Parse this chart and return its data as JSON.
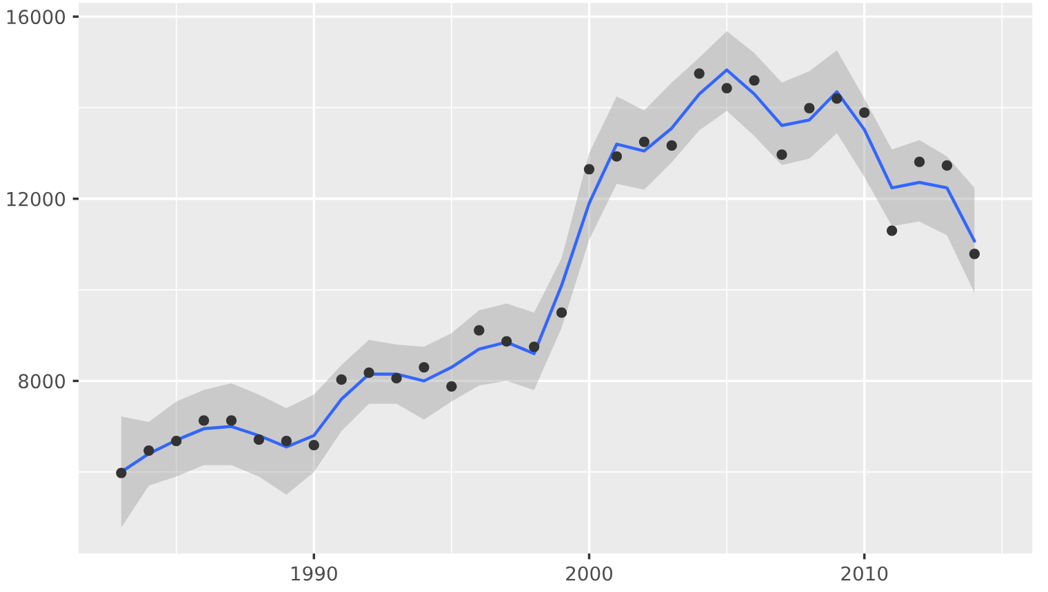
{
  "chart_data": {
    "type": "scatter",
    "xlim": [
      1981.45,
      2016.1
    ],
    "ylim": [
      4210,
      16300
    ],
    "xticks": [
      1990,
      2000,
      2010
    ],
    "yticks": [
      8000,
      12000,
      16000
    ],
    "grid": true,
    "legend": false,
    "series": [
      {
        "marker": "circle",
        "color": "#333333",
        "x": [
          1983,
          1984,
          1985,
          1986,
          1987,
          1988,
          1989,
          1990,
          1991,
          1992,
          1993,
          1994,
          1995,
          1996,
          1997,
          1998,
          1999,
          2000,
          2001,
          2002,
          2003,
          2004,
          2005,
          2006,
          2007,
          2008,
          2009,
          2010,
          2011,
          2012,
          2013,
          2014
        ],
        "values": [
          5980,
          6470,
          6680,
          7130,
          7130,
          6710,
          6680,
          6590,
          8030,
          8180,
          8060,
          8300,
          7880,
          9110,
          8870,
          8750,
          9500,
          12650,
          12930,
          13250,
          13170,
          14750,
          14430,
          14600,
          12970,
          13990,
          14200,
          13890,
          11300,
          12810,
          12730,
          10790
        ]
      },
      {
        "type": "line",
        "marker": "none",
        "color": "#3366ff",
        "line_style": "solid",
        "x": [
          1983,
          1984,
          1985,
          1986,
          1987,
          1988,
          1989,
          1990,
          1991,
          1992,
          1993,
          1994,
          1995,
          1996,
          1997,
          1998,
          1999,
          2000,
          2001,
          2002,
          2003,
          2004,
          2005,
          2006,
          2007,
          2008,
          2009,
          2010,
          2011,
          2012,
          2013,
          2014
        ],
        "values": [
          6000,
          6400,
          6700,
          6950,
          7000,
          6800,
          6550,
          6800,
          7600,
          8150,
          8150,
          8000,
          8300,
          8700,
          8850,
          8600,
          10100,
          11900,
          13200,
          13050,
          13550,
          14300,
          14830,
          14300,
          13610,
          13730,
          14350,
          13520,
          12240,
          12360,
          12240,
          11070
        ],
        "lower": [
          4780,
          5700,
          5900,
          6150,
          6150,
          5900,
          5500,
          6000,
          6900,
          7500,
          7500,
          7150,
          7550,
          7900,
          8000,
          7800,
          9170,
          11100,
          12330,
          12200,
          12800,
          13500,
          13930,
          13380,
          12740,
          12880,
          13440,
          12480,
          11400,
          11500,
          11200,
          9930
        ],
        "upper": [
          7220,
          7100,
          7550,
          7800,
          7950,
          7700,
          7400,
          7700,
          8350,
          8900,
          8800,
          8750,
          9050,
          9550,
          9700,
          9500,
          10700,
          13000,
          14250,
          13940,
          14550,
          15100,
          15680,
          15200,
          14550,
          14800,
          15260,
          14200,
          13080,
          13290,
          12930,
          12240
        ]
      }
    ]
  }
}
